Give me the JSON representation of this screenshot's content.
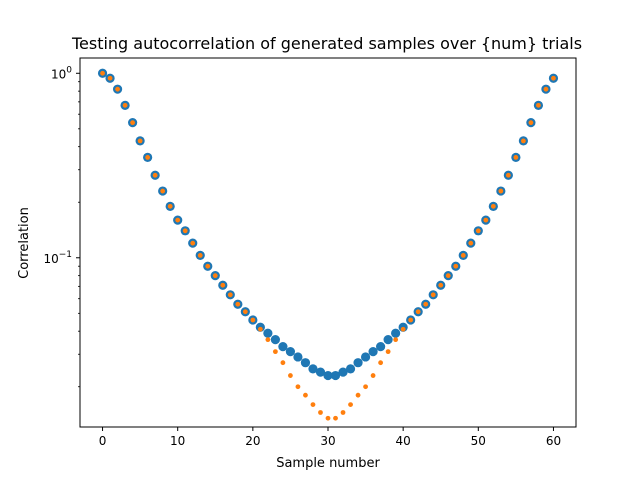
{
  "chart_data": {
    "type": "scatter",
    "title": "Testing autocorrelation of generated samples over {num} trials",
    "xlabel": "Sample number",
    "ylabel": "Correlation",
    "xlim": [
      -3,
      63
    ],
    "ylim": [
      0.0121,
      1.21
    ],
    "yscale": "log",
    "grid": false,
    "legend": "none",
    "x_ticks": [
      0,
      10,
      20,
      30,
      40,
      50,
      60
    ],
    "x_tick_labels": [
      "0",
      "10",
      "20",
      "30",
      "40",
      "50",
      "60"
    ],
    "y_ticks": [
      0.1,
      1
    ],
    "y_tick_labels": [
      {
        "base": "10",
        "exp": "−1"
      },
      {
        "base": "10",
        "exp": "0"
      }
    ],
    "series": [
      {
        "color": "#1f77b4",
        "marker": "large-circle",
        "x": [
          0,
          1,
          2,
          3,
          4,
          5,
          6,
          7,
          8,
          9,
          10,
          11,
          12,
          13,
          14,
          15,
          16,
          17,
          18,
          19,
          20,
          21,
          22,
          23,
          24,
          25,
          26,
          27,
          28,
          29,
          30,
          31,
          32,
          33,
          34,
          35,
          36,
          37,
          38,
          39,
          40,
          41,
          42,
          43,
          44,
          45,
          46,
          47,
          48,
          49,
          50,
          51,
          52,
          53,
          54,
          55,
          56,
          57,
          58,
          59,
          60
        ],
        "values": [
          1.0,
          0.94,
          0.82,
          0.67,
          0.54,
          0.43,
          0.35,
          0.28,
          0.23,
          0.19,
          0.16,
          0.14,
          0.12,
          0.103,
          0.09,
          0.08,
          0.071,
          0.063,
          0.056,
          0.051,
          0.046,
          0.042,
          0.039,
          0.036,
          0.033,
          0.031,
          0.029,
          0.027,
          0.025,
          0.024,
          0.023,
          0.023,
          0.024,
          0.025,
          0.027,
          0.029,
          0.031,
          0.033,
          0.036,
          0.039,
          0.042,
          0.046,
          0.051,
          0.056,
          0.063,
          0.071,
          0.08,
          0.09,
          0.103,
          0.12,
          0.14,
          0.16,
          0.19,
          0.23,
          0.28,
          0.35,
          0.43,
          0.54,
          0.67,
          0.82,
          0.94
        ]
      },
      {
        "color": "#ff7f0e",
        "marker": "small-dot",
        "x": [
          0,
          1,
          2,
          3,
          4,
          5,
          6,
          7,
          8,
          9,
          10,
          11,
          12,
          13,
          14,
          15,
          16,
          17,
          18,
          19,
          20,
          21,
          22,
          23,
          24,
          25,
          26,
          27,
          28,
          29,
          30,
          31,
          32,
          33,
          34,
          35,
          36,
          37,
          38,
          39,
          40,
          41,
          42,
          43,
          44,
          45,
          46,
          47,
          48,
          49,
          50,
          51,
          52,
          53,
          54,
          55,
          56,
          57,
          58,
          59,
          60
        ],
        "values": [
          1.0,
          0.94,
          0.82,
          0.67,
          0.54,
          0.43,
          0.35,
          0.28,
          0.23,
          0.19,
          0.16,
          0.14,
          0.12,
          0.103,
          0.09,
          0.08,
          0.071,
          0.063,
          0.056,
          0.051,
          0.046,
          0.041,
          0.036,
          0.031,
          0.027,
          0.023,
          0.02,
          0.018,
          0.016,
          0.0145,
          0.0135,
          0.0135,
          0.0145,
          0.016,
          0.018,
          0.02,
          0.023,
          0.027,
          0.031,
          0.036,
          0.041,
          0.046,
          0.051,
          0.056,
          0.063,
          0.071,
          0.08,
          0.09,
          0.103,
          0.12,
          0.14,
          0.16,
          0.19,
          0.23,
          0.28,
          0.35,
          0.43,
          0.54,
          0.67,
          0.82,
          0.94
        ]
      }
    ]
  }
}
